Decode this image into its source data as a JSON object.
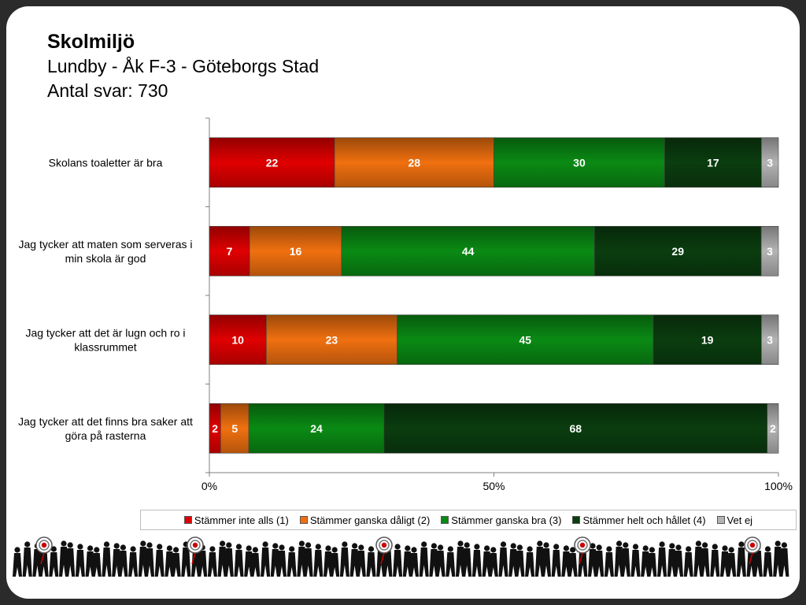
{
  "header": {
    "title": "Skolmiljö",
    "subtitle": "Lundby - Åk F-3 - Göteborgs Stad",
    "responses": "Antal svar: 730"
  },
  "chart_data": {
    "type": "bar",
    "orientation": "horizontal",
    "stacked": "percent",
    "categories": [
      "Skolans toaletter är bra",
      "Jag tycker att maten som serveras i min skola är god",
      "Jag tycker att det är lugn och ro i klassrummet",
      "Jag tycker att det finns bra saker att göra på rasterna"
    ],
    "category_lines": [
      [
        "Skolans toaletter är bra"
      ],
      [
        "Jag tycker att maten som serveras i",
        "min skola är god"
      ],
      [
        "Jag tycker att det är lugn och ro i",
        "klassrummet"
      ],
      [
        "Jag tycker att det finns bra saker att",
        "göra på rasterna"
      ]
    ],
    "series": [
      {
        "name": "Stämmer inte alls (1)",
        "color": "#e00000",
        "values": [
          22,
          7,
          10,
          2
        ]
      },
      {
        "name": "Stämmer ganska dåligt (2)",
        "color": "#f07010",
        "values": [
          28,
          16,
          23,
          5
        ]
      },
      {
        "name": "Stämmer ganska bra (3)",
        "color": "#0a8a14",
        "values": [
          30,
          44,
          45,
          24
        ]
      },
      {
        "name": "Stämmer helt och hållet (4)",
        "color": "#0a3d0f",
        "values": [
          17,
          29,
          19,
          68
        ]
      },
      {
        "name": "Vet ej",
        "color": "#b4b4b4",
        "values": [
          3,
          3,
          3,
          2
        ]
      }
    ],
    "xticks": [
      "0%",
      "50%",
      "100%"
    ],
    "xlim": [
      0,
      100
    ],
    "legend": "bottom"
  }
}
